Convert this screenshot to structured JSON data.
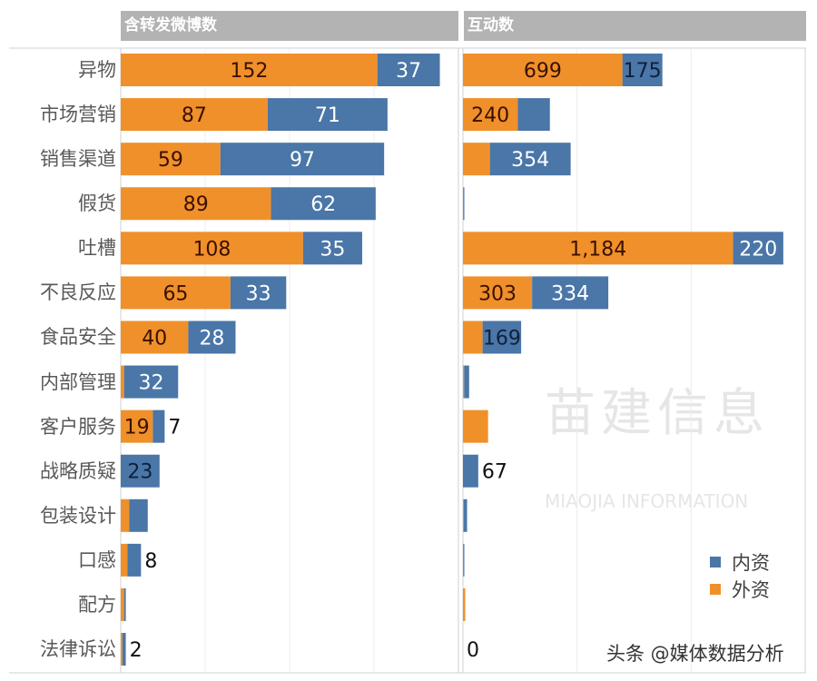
{
  "chart_data": [
    {
      "type": "bar",
      "orientation": "horizontal",
      "stacked": true,
      "title": "含转发微博数",
      "categories": [
        "异物",
        "市场营销",
        "销售渠道",
        "假货",
        "吐槽",
        "不良反应",
        "食品安全",
        "内部管理",
        "客户服务",
        "战略质疑",
        "包装设计",
        "口感",
        "配方",
        "法律诉讼"
      ],
      "series": [
        {
          "name": "外资",
          "color": "#f0902a",
          "values": [
            152,
            87,
            59,
            89,
            108,
            65,
            40,
            2,
            19,
            0,
            5,
            4,
            2,
            1
          ],
          "labels": [
            "152",
            "87",
            "59",
            "89",
            "108",
            "65",
            "40",
            null,
            "19",
            null,
            null,
            null,
            null,
            null
          ]
        },
        {
          "name": "内资",
          "color": "#4a76a8",
          "values": [
            37,
            71,
            97,
            62,
            35,
            33,
            28,
            32,
            7,
            23,
            11,
            8,
            1,
            2
          ],
          "labels": [
            "37",
            "71",
            "97",
            "62",
            "35",
            "33",
            "28",
            "32",
            "7",
            "23",
            null,
            "8",
            null,
            "2"
          ]
        }
      ],
      "xlim": [
        0,
        200
      ],
      "grid": true
    },
    {
      "type": "bar",
      "orientation": "horizontal",
      "stacked": true,
      "title": "互动数",
      "categories": [
        "异物",
        "市场营销",
        "销售渠道",
        "假货",
        "吐槽",
        "不良反应",
        "食品安全",
        "内部管理",
        "客户服务",
        "战略质疑",
        "包装设计",
        "口感",
        "配方",
        "法律诉讼"
      ],
      "series": [
        {
          "name": "外资",
          "color": "#f0902a",
          "values": [
            699,
            240,
            118,
            2,
            1184,
            303,
            86,
            5,
            110,
            0,
            3,
            2,
            10,
            0
          ],
          "labels": [
            "699",
            "240",
            null,
            null,
            "1,184",
            "303",
            null,
            null,
            null,
            null,
            null,
            null,
            null,
            null
          ]
        },
        {
          "name": "内资",
          "color": "#4a76a8",
          "values": [
            175,
            141,
            354,
            4,
            220,
            334,
            169,
            22,
            0,
            67,
            15,
            4,
            0,
            0
          ],
          "labels": [
            "175",
            null,
            "354",
            null,
            "220",
            "334",
            "169",
            null,
            null,
            "67",
            null,
            null,
            null,
            "0"
          ]
        }
      ],
      "xlim": [
        0,
        1500
      ],
      "grid": true
    }
  ],
  "legend": {
    "position": "bottom-right",
    "items": [
      {
        "label": "内资",
        "color": "#4a76a8"
      },
      {
        "label": "外资",
        "color": "#f0902a"
      }
    ]
  },
  "watermark": {
    "cn": "苗建信息",
    "en": "MIAOJIA INFORMATION"
  },
  "credit": "头条 @媒体数据分析"
}
